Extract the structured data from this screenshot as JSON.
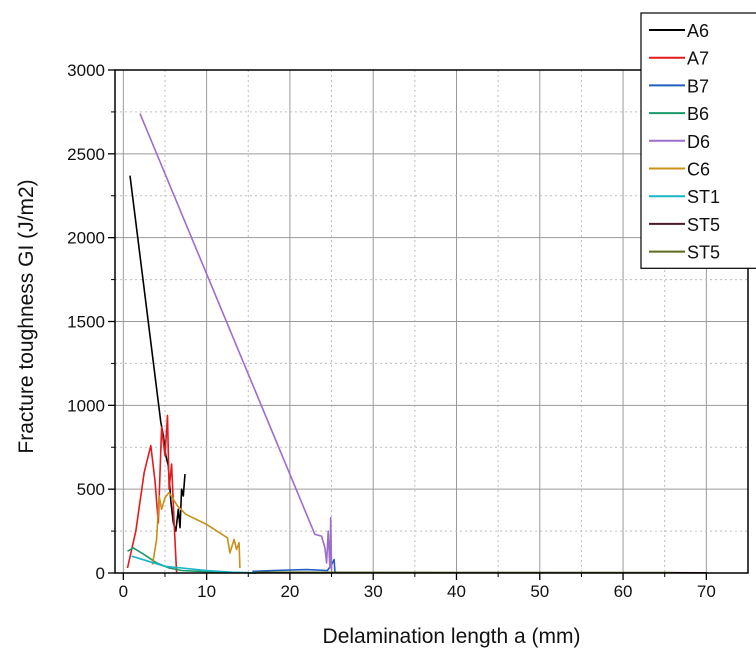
{
  "chart_data": {
    "type": "line",
    "title": "",
    "xlabel": "Delamination length a (mm)",
    "ylabel": "Fracture toughness GI (J/m2)",
    "xlim": [
      -1,
      75
    ],
    "ylim": [
      0,
      3000
    ],
    "xticks": [
      0,
      10,
      20,
      30,
      40,
      50,
      60,
      70
    ],
    "yticks": [
      0,
      500,
      1000,
      1500,
      2000,
      2500,
      3000
    ],
    "grid": true,
    "legend_position": "top-right",
    "series": [
      {
        "name": "A6",
        "color": "#000000",
        "x": [
          0.8,
          4.5,
          4.8,
          5.1,
          5.4,
          5.7,
          6.0,
          6.3,
          6.6,
          6.8,
          7.0,
          7.2,
          7.4
        ],
        "y": [
          2370,
          900,
          820,
          700,
          640,
          430,
          300,
          250,
          380,
          270,
          500,
          460,
          590
        ]
      },
      {
        "name": "A7",
        "color": "#e41a1c",
        "x": [
          0.5,
          1.5,
          2.5,
          3.3,
          3.8,
          4.2,
          4.6,
          5.0,
          5.3,
          5.5,
          5.8,
          6.1,
          6.4
        ],
        "y": [
          30,
          250,
          600,
          760,
          550,
          300,
          870,
          700,
          940,
          500,
          650,
          300,
          0
        ]
      },
      {
        "name": "B7",
        "color": "#1f5fbf",
        "x": [
          15.5,
          18,
          22,
          24.5,
          25,
          25.3,
          25.4,
          25.6
        ],
        "y": [
          10,
          15,
          20,
          15,
          50,
          80,
          10,
          0
        ]
      },
      {
        "name": "B6",
        "color": "#1a9a6a",
        "x": [
          0.5,
          1.2,
          2.5,
          4.0,
          5.5,
          7.0,
          9.0,
          12.0,
          16.0
        ],
        "y": [
          130,
          150,
          110,
          60,
          30,
          15,
          10,
          5,
          0
        ]
      },
      {
        "name": "D6",
        "color": "#9b6fcb",
        "x": [
          2.0,
          23.0,
          23.8,
          24.2,
          24.4,
          24.6,
          24.8,
          24.9,
          25.0
        ],
        "y": [
          2740,
          230,
          220,
          150,
          60,
          250,
          30,
          330,
          10
        ]
      },
      {
        "name": "C6",
        "color": "#c8901a",
        "x": [
          3.5,
          4.0,
          4.3,
          4.6,
          5.0,
          5.5,
          6.5,
          7.5,
          10.0,
          12.5,
          12.8,
          13.3,
          13.6,
          13.9,
          14.0
        ],
        "y": [
          50,
          200,
          460,
          380,
          450,
          480,
          400,
          350,
          290,
          210,
          120,
          200,
          140,
          180,
          30
        ]
      },
      {
        "name": "ST1",
        "color": "#18b4c8",
        "x": [
          1.0,
          5.0,
          10.0,
          13.0,
          16.0
        ],
        "y": [
          100,
          40,
          15,
          5,
          0
        ]
      },
      {
        "name": "ST5",
        "color": "#4a1a28",
        "x": [
          16.0,
          40.0,
          66.0,
          70.0
        ],
        "y": [
          3,
          2,
          2,
          1
        ]
      },
      {
        "name": "ST5",
        "color": "#5c6a1e",
        "x": [
          16.0,
          40.0,
          66.0
        ],
        "y": [
          5,
          3,
          2
        ]
      }
    ]
  }
}
